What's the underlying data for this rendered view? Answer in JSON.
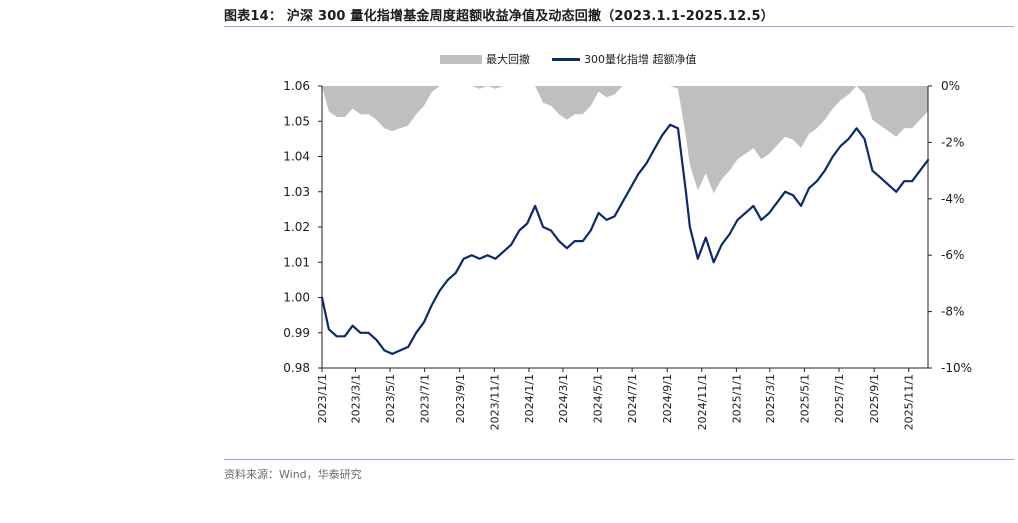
{
  "figure": {
    "title": "图表14： 沪深 300 量化指增基金周度超额收益净值及动态回撤（2023.1.1-2025.12.5）",
    "source": "资料来源：Wind，华泰研究"
  },
  "colors": {
    "line": "#0b2a6b",
    "area": "#bfbfbf",
    "rule": "#8faadc"
  },
  "chart_data": {
    "type": "line",
    "legend": [
      "最大回撤",
      "300量化指增 超额净值"
    ],
    "legend_position": "top-center",
    "grid": false,
    "x_axis": {
      "type": "date",
      "range": [
        "2023-01-01",
        "2025-12-05"
      ],
      "tick_labels": [
        "2023/1/1",
        "2023/3/1",
        "2023/5/1",
        "2023/7/1",
        "2023/9/1",
        "2023/11/1",
        "2024/1/1",
        "2024/3/1",
        "2024/5/1",
        "2024/7/1",
        "2024/9/1",
        "2024/11/1",
        "2025/1/1",
        "2025/3/1",
        "2025/5/1",
        "2025/7/1",
        "2025/9/1",
        "2025/11/1"
      ]
    },
    "y_left": {
      "range": [
        0.98,
        1.06
      ],
      "tick_labels": [
        "0.98",
        "0.99",
        "1.00",
        "1.01",
        "1.02",
        "1.03",
        "1.04",
        "1.05",
        "1.06"
      ]
    },
    "y_right": {
      "range": [
        -10,
        0
      ],
      "unit": "%",
      "tick_labels": [
        "-10%",
        "-8%",
        "-6%",
        "-4%",
        "-2%",
        "0%"
      ]
    },
    "series": [
      {
        "name": "300量化指增 超额净值",
        "kind": "line",
        "axis": "left",
        "points": [
          [
            "2023-01-01",
            1.0
          ],
          [
            "2023-01-13",
            0.991
          ],
          [
            "2023-01-27",
            0.989
          ],
          [
            "2023-02-10",
            0.989
          ],
          [
            "2023-02-24",
            0.992
          ],
          [
            "2023-03-10",
            0.99
          ],
          [
            "2023-03-24",
            0.99
          ],
          [
            "2023-04-07",
            0.988
          ],
          [
            "2023-04-21",
            0.985
          ],
          [
            "2023-05-05",
            0.984
          ],
          [
            "2023-05-19",
            0.985
          ],
          [
            "2023-06-02",
            0.986
          ],
          [
            "2023-06-16",
            0.99
          ],
          [
            "2023-06-30",
            0.993
          ],
          [
            "2023-07-14",
            0.998
          ],
          [
            "2023-07-28",
            1.002
          ],
          [
            "2023-08-11",
            1.005
          ],
          [
            "2023-08-25",
            1.007
          ],
          [
            "2023-09-08",
            1.011
          ],
          [
            "2023-09-22",
            1.012
          ],
          [
            "2023-10-06",
            1.011
          ],
          [
            "2023-10-20",
            1.012
          ],
          [
            "2023-11-03",
            1.011
          ],
          [
            "2023-11-17",
            1.013
          ],
          [
            "2023-12-01",
            1.015
          ],
          [
            "2023-12-15",
            1.019
          ],
          [
            "2023-12-29",
            1.021
          ],
          [
            "2024-01-12",
            1.026
          ],
          [
            "2024-01-26",
            1.02
          ],
          [
            "2024-02-09",
            1.019
          ],
          [
            "2024-02-23",
            1.016
          ],
          [
            "2024-03-08",
            1.014
          ],
          [
            "2024-03-22",
            1.016
          ],
          [
            "2024-04-05",
            1.016
          ],
          [
            "2024-04-19",
            1.019
          ],
          [
            "2024-05-03",
            1.024
          ],
          [
            "2024-05-17",
            1.022
          ],
          [
            "2024-05-31",
            1.023
          ],
          [
            "2024-06-14",
            1.027
          ],
          [
            "2024-06-28",
            1.031
          ],
          [
            "2024-07-12",
            1.035
          ],
          [
            "2024-07-26",
            1.038
          ],
          [
            "2024-08-09",
            1.042
          ],
          [
            "2024-08-23",
            1.046
          ],
          [
            "2024-09-06",
            1.049
          ],
          [
            "2024-09-20",
            1.048
          ],
          [
            "2024-10-04",
            1.03
          ],
          [
            "2024-10-11",
            1.02
          ],
          [
            "2024-10-25",
            1.011
          ],
          [
            "2024-11-08",
            1.017
          ],
          [
            "2024-11-22",
            1.01
          ],
          [
            "2024-12-06",
            1.015
          ],
          [
            "2024-12-20",
            1.018
          ],
          [
            "2025-01-03",
            1.022
          ],
          [
            "2025-01-17",
            1.024
          ],
          [
            "2025-01-31",
            1.026
          ],
          [
            "2025-02-14",
            1.022
          ],
          [
            "2025-02-28",
            1.024
          ],
          [
            "2025-03-14",
            1.027
          ],
          [
            "2025-03-28",
            1.03
          ],
          [
            "2025-04-11",
            1.029
          ],
          [
            "2025-04-25",
            1.026
          ],
          [
            "2025-05-09",
            1.031
          ],
          [
            "2025-05-23",
            1.033
          ],
          [
            "2025-06-06",
            1.036
          ],
          [
            "2025-06-20",
            1.04
          ],
          [
            "2025-07-04",
            1.043
          ],
          [
            "2025-07-18",
            1.045
          ],
          [
            "2025-08-01",
            1.048
          ],
          [
            "2025-08-15",
            1.045
          ],
          [
            "2025-08-29",
            1.036
          ],
          [
            "2025-09-12",
            1.034
          ],
          [
            "2025-09-26",
            1.032
          ],
          [
            "2025-10-10",
            1.03
          ],
          [
            "2025-10-24",
            1.033
          ],
          [
            "2025-11-07",
            1.033
          ],
          [
            "2025-11-21",
            1.036
          ],
          [
            "2025-12-05",
            1.039
          ]
        ]
      },
      {
        "name": "最大回撤",
        "kind": "area",
        "axis": "right",
        "points": [
          [
            "2023-01-01",
            0.0
          ],
          [
            "2023-01-13",
            -0.9
          ],
          [
            "2023-01-27",
            -1.1
          ],
          [
            "2023-02-10",
            -1.1
          ],
          [
            "2023-02-24",
            -0.8
          ],
          [
            "2023-03-10",
            -1.0
          ],
          [
            "2023-03-24",
            -1.0
          ],
          [
            "2023-04-07",
            -1.2
          ],
          [
            "2023-04-21",
            -1.5
          ],
          [
            "2023-05-05",
            -1.6
          ],
          [
            "2023-05-19",
            -1.5
          ],
          [
            "2023-06-02",
            -1.4
          ],
          [
            "2023-06-16",
            -1.0
          ],
          [
            "2023-06-30",
            -0.7
          ],
          [
            "2023-07-14",
            -0.2
          ],
          [
            "2023-07-28",
            0.0
          ],
          [
            "2023-08-11",
            0.0
          ],
          [
            "2023-08-25",
            0.0
          ],
          [
            "2023-09-08",
            0.0
          ],
          [
            "2023-09-22",
            0.0
          ],
          [
            "2023-10-06",
            -0.1
          ],
          [
            "2023-10-20",
            0.0
          ],
          [
            "2023-11-03",
            -0.1
          ],
          [
            "2023-11-17",
            0.0
          ],
          [
            "2023-12-01",
            0.0
          ],
          [
            "2023-12-15",
            0.0
          ],
          [
            "2023-12-29",
            0.0
          ],
          [
            "2024-01-12",
            0.0
          ],
          [
            "2024-01-26",
            -0.6
          ],
          [
            "2024-02-09",
            -0.7
          ],
          [
            "2024-02-23",
            -1.0
          ],
          [
            "2024-03-08",
            -1.2
          ],
          [
            "2024-03-22",
            -1.0
          ],
          [
            "2024-04-05",
            -1.0
          ],
          [
            "2024-04-19",
            -0.7
          ],
          [
            "2024-05-03",
            -0.2
          ],
          [
            "2024-05-17",
            -0.4
          ],
          [
            "2024-05-31",
            -0.3
          ],
          [
            "2024-06-14",
            0.0
          ],
          [
            "2024-06-28",
            0.0
          ],
          [
            "2024-07-12",
            0.0
          ],
          [
            "2024-07-26",
            0.0
          ],
          [
            "2024-08-09",
            0.0
          ],
          [
            "2024-08-23",
            0.0
          ],
          [
            "2024-09-06",
            0.0
          ],
          [
            "2024-09-20",
            -0.1
          ],
          [
            "2024-10-04",
            -1.8
          ],
          [
            "2024-10-11",
            -2.8
          ],
          [
            "2024-10-25",
            -3.7
          ],
          [
            "2024-11-08",
            -3.1
          ],
          [
            "2024-11-22",
            -3.8
          ],
          [
            "2024-12-06",
            -3.3
          ],
          [
            "2024-12-20",
            -3.0
          ],
          [
            "2025-01-03",
            -2.6
          ],
          [
            "2025-01-17",
            -2.4
          ],
          [
            "2025-01-31",
            -2.2
          ],
          [
            "2025-02-14",
            -2.6
          ],
          [
            "2025-02-28",
            -2.4
          ],
          [
            "2025-03-14",
            -2.1
          ],
          [
            "2025-03-28",
            -1.8
          ],
          [
            "2025-04-11",
            -1.9
          ],
          [
            "2025-04-25",
            -2.2
          ],
          [
            "2025-05-09",
            -1.7
          ],
          [
            "2025-05-23",
            -1.5
          ],
          [
            "2025-06-06",
            -1.2
          ],
          [
            "2025-06-20",
            -0.8
          ],
          [
            "2025-07-04",
            -0.5
          ],
          [
            "2025-07-18",
            -0.3
          ],
          [
            "2025-08-01",
            0.0
          ],
          [
            "2025-08-15",
            -0.3
          ],
          [
            "2025-08-29",
            -1.2
          ],
          [
            "2025-09-12",
            -1.4
          ],
          [
            "2025-09-26",
            -1.6
          ],
          [
            "2025-10-10",
            -1.8
          ],
          [
            "2025-10-24",
            -1.5
          ],
          [
            "2025-11-07",
            -1.5
          ],
          [
            "2025-11-21",
            -1.2
          ],
          [
            "2025-12-05",
            -0.9
          ]
        ]
      }
    ]
  },
  "decor": {
    "bottom_glyphs": "t—  — ",
    "bottom_glyphs_note": ""
  }
}
